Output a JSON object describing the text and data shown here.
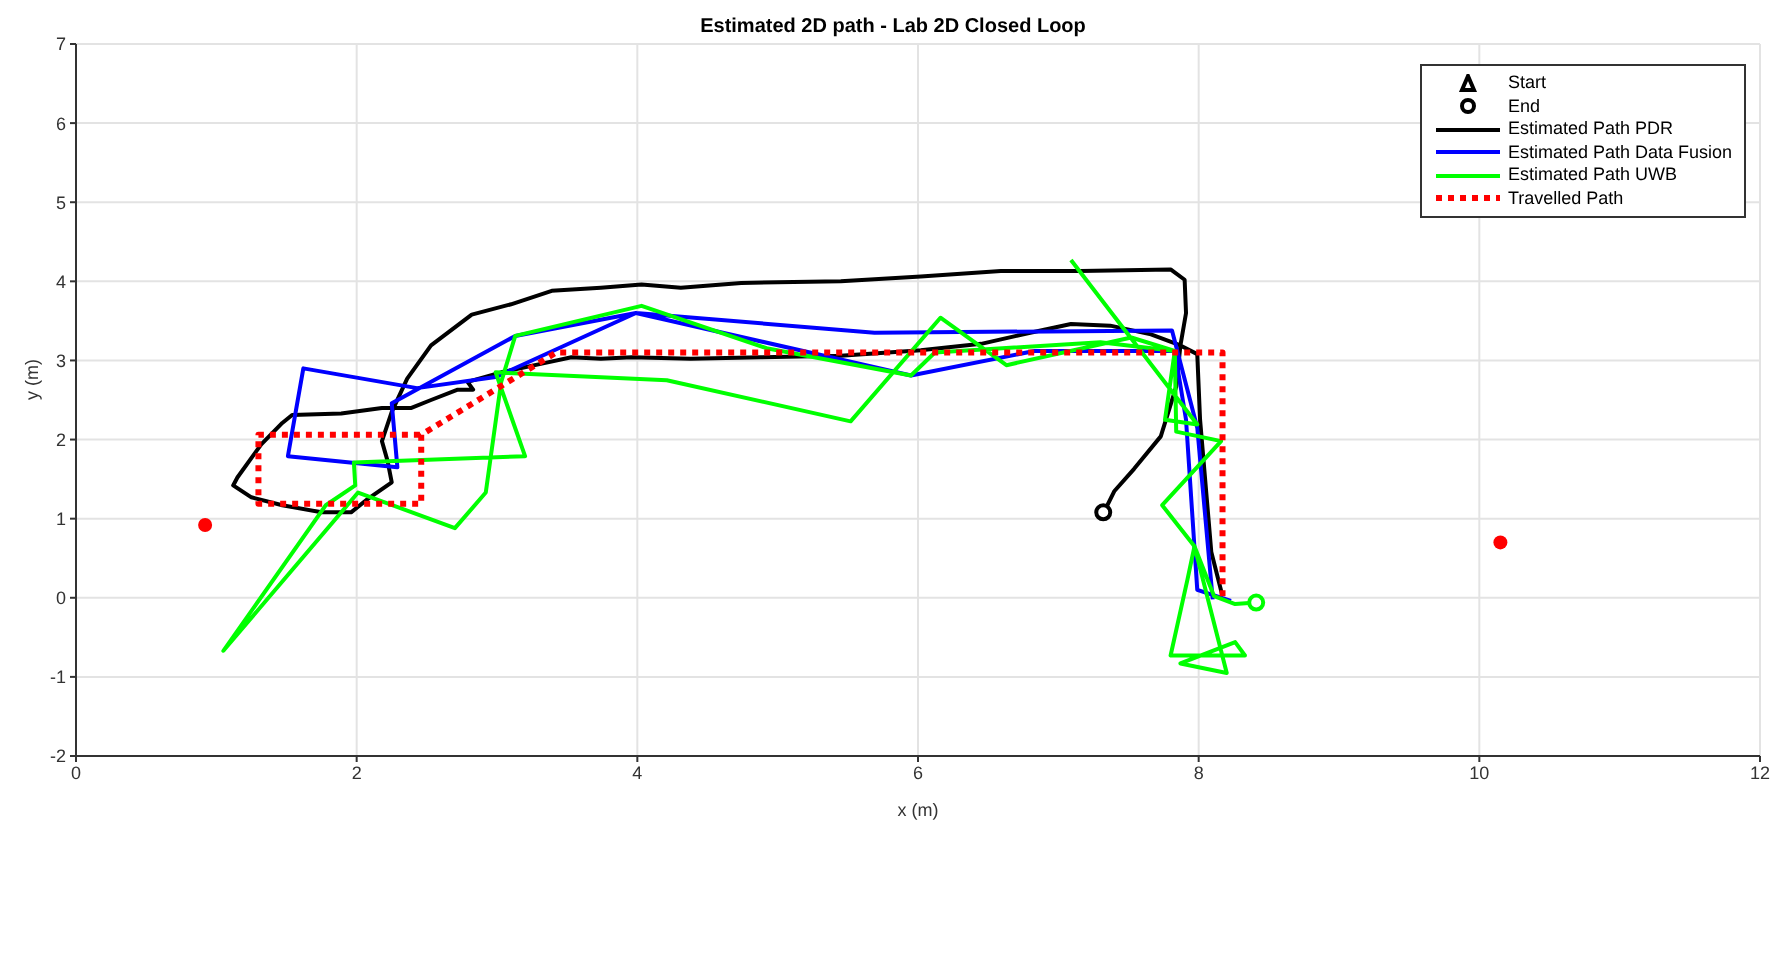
{
  "chart_data": {
    "type": "line",
    "title": "Estimated 2D path - Lab 2D Closed Loop",
    "xlabel": "x (m)",
    "ylabel": "y (m)",
    "xlim": [
      0,
      12
    ],
    "ylim": [
      -2,
      7
    ],
    "xticks": [
      0,
      2,
      4,
      6,
      8,
      10,
      12
    ],
    "yticks": [
      -2,
      -1,
      0,
      1,
      2,
      3,
      4,
      5,
      6,
      7
    ],
    "grid": true,
    "legend": "top right",
    "series": [
      {
        "name": "Start",
        "type": "scatter",
        "marker": "triangle",
        "color": "#000000"
      },
      {
        "name": "End",
        "type": "scatter",
        "marker": "circle",
        "color": "#000000",
        "colors": [
          "#000000",
          "#00ff00"
        ],
        "x": [
          7.32,
          8.41
        ],
        "values": [
          1.08,
          -0.06
        ]
      },
      {
        "name": "Estimated Path PDR",
        "color": "#000000",
        "line_style": "solid",
        "x": [
          8.17,
          8.09,
          8.01,
          7.99,
          7.87,
          7.66,
          7.37,
          7.09,
          6.8,
          6.45,
          6.02,
          5.45,
          4.88,
          4.38,
          3.96,
          3.74,
          3.53,
          3.32,
          3.03,
          2.79,
          2.83,
          2.72,
          2.53,
          2.39,
          2.18,
          1.89,
          1.54,
          1.47,
          1.32,
          1.15,
          1.12,
          1.25,
          1.47,
          1.75,
          1.96,
          2.08,
          2.25,
          2.22,
          2.18,
          2.25,
          2.36,
          2.53,
          2.82,
          3.1,
          3.39,
          3.74,
          4.03,
          4.31,
          4.74,
          5.45,
          6.02,
          6.59,
          7.16,
          7.8,
          7.9,
          7.91,
          7.87,
          7.84,
          7.73,
          7.54,
          7.4,
          7.33,
          7.32
        ],
        "values": [
          0.02,
          0.58,
          2.25,
          3.08,
          3.19,
          3.33,
          3.44,
          3.46,
          3.35,
          3.21,
          3.13,
          3.06,
          3.04,
          3.02,
          3.04,
          3.02,
          3.04,
          2.96,
          2.85,
          2.73,
          2.63,
          2.63,
          2.5,
          2.4,
          2.4,
          2.33,
          2.31,
          2.21,
          1.94,
          1.52,
          1.42,
          1.27,
          1.17,
          1.08,
          1.08,
          1.25,
          1.46,
          1.73,
          1.98,
          2.35,
          2.77,
          3.19,
          3.58,
          3.71,
          3.88,
          3.92,
          3.96,
          3.92,
          3.98,
          4.0,
          4.06,
          4.13,
          4.13,
          4.15,
          4.02,
          3.6,
          3.19,
          2.67,
          2.04,
          1.63,
          1.35,
          1.1,
          1.08
        ]
      },
      {
        "name": "Estimated Path Data Fusion",
        "color": "#0000ff",
        "line_style": "solid",
        "x": [
          8.1,
          7.99,
          7.81,
          5.69,
          3.99,
          3.13,
          2.25,
          2.29,
          1.51,
          1.62,
          2.43,
          2.99,
          3.99,
          5.95,
          6.83,
          7.83,
          7.91,
          7.99,
          8.23
        ],
        "values": [
          -0.02,
          2.15,
          3.38,
          3.35,
          3.6,
          3.31,
          2.46,
          1.65,
          1.79,
          2.9,
          2.65,
          2.79,
          3.6,
          2.81,
          3.12,
          3.12,
          2.25,
          0.1,
          -0.04
        ]
      },
      {
        "name": "Estimated Path UWB",
        "color": "#00ff00",
        "line_style": "solid",
        "x": [
          7.09,
          7.99,
          7.76,
          7.83,
          7.52,
          6.63,
          6.16,
          5.52,
          4.21,
          2.99,
          3.2,
          1.98,
          1.99,
          1.78,
          1.05,
          2.01,
          2.7,
          2.92,
          3.03,
          3.13,
          4.03,
          4.93,
          5.95,
          6.12,
          7.3,
          7.83,
          7.84,
          8.16,
          7.74,
          7.97,
          7.92,
          7.8,
          8.33,
          8.26,
          7.87,
          8.2,
          7.97,
          8.11,
          8.26,
          8.41
        ],
        "values": [
          4.27,
          2.19,
          2.25,
          3.12,
          3.29,
          2.94,
          3.54,
          2.23,
          2.75,
          2.85,
          1.79,
          1.71,
          1.42,
          1.17,
          -0.67,
          1.33,
          0.88,
          1.33,
          2.73,
          3.31,
          3.69,
          3.15,
          2.81,
          3.1,
          3.23,
          3.12,
          2.1,
          1.98,
          1.17,
          0.65,
          0.23,
          -0.73,
          -0.73,
          -0.56,
          -0.83,
          -0.95,
          0.65,
          0.02,
          -0.08,
          -0.06
        ]
      },
      {
        "name": "Travelled Path",
        "color": "#ff0000",
        "line_style": "dotted",
        "x": [
          8.17,
          8.17,
          3.42,
          2.46,
          2.46,
          1.3,
          1.3,
          2.46
        ],
        "values": [
          0.02,
          3.1,
          3.1,
          2.06,
          1.19,
          1.19,
          2.06,
          2.06
        ]
      },
      {
        "type": "scatter",
        "marker": "circle",
        "color": "#ff0000",
        "x": [
          0.92,
          10.15
        ],
        "values": [
          0.92,
          0.7
        ]
      }
    ]
  }
}
